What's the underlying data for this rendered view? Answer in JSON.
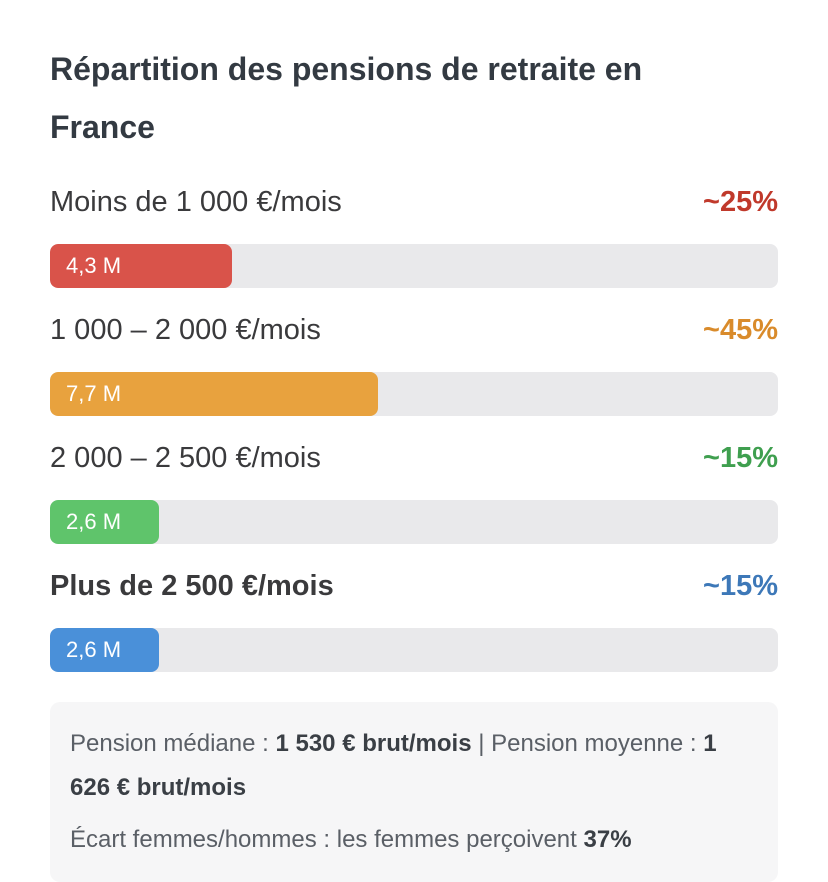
{
  "title": "Répartition des pensions de retraite en France",
  "colors": {
    "red": "#d9534a",
    "orange": "#e8a23e",
    "green": "#5fc46b",
    "blue": "#4a90d9",
    "red_text": "#c0392b",
    "orange_text": "#d98b2b",
    "green_text": "#3f9f4f",
    "blue_text": "#3d78b8"
  },
  "chart_data": {
    "type": "bar",
    "title": "Répartition des pensions de retraite en France",
    "orientation": "horizontal",
    "categories": [
      "Moins de 1 000 €/mois",
      "1 000 – 2 000 €/mois",
      "2 000 – 2 500 €/mois",
      "Plus de 2 500 €/mois"
    ],
    "values": [
      4.3,
      7.7,
      2.6,
      2.6
    ],
    "value_labels": [
      "4,3 M",
      "7,7 M",
      "2,6 M",
      "2,6 M"
    ],
    "percent_labels": [
      "~25%",
      "~45%",
      "~15%",
      "~15%"
    ],
    "percent_values": [
      25,
      45,
      15,
      15
    ],
    "fill_fraction": [
      0.25,
      0.45,
      0.15,
      0.15
    ],
    "bold_label_index": 3,
    "bar_colors": [
      "#d9534a",
      "#e8a23e",
      "#5fc46b",
      "#4a90d9"
    ],
    "percent_colors": [
      "#c0392b",
      "#d98b2b",
      "#3f9f4f",
      "#3d78b8"
    ]
  },
  "notes": {
    "line1_prefix": "Pension médiane : ",
    "line1_median": "1 530 € brut/mois",
    "line1_mid": " | Pension moyenne : ",
    "line1_mean": "1 626 € brut/mois",
    "line2_prefix": "Écart femmes/hommes : les femmes perçoivent ",
    "line2_value": "37%"
  }
}
